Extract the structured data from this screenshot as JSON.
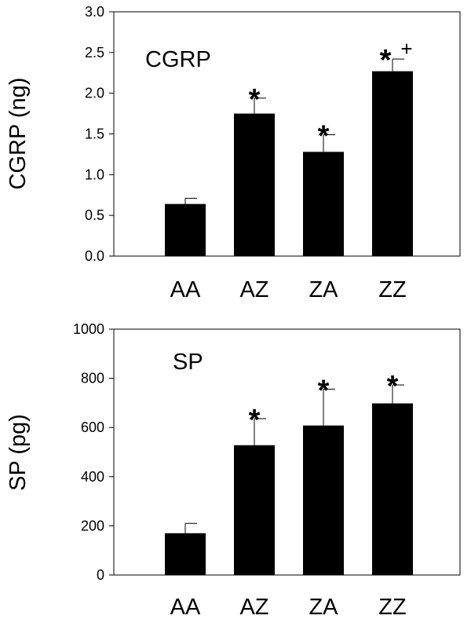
{
  "chart_data": [
    {
      "type": "bar",
      "title": "CGRP",
      "xlabel": "",
      "ylabel": "CGRP (ng)",
      "categories": [
        "AA",
        "AZ",
        "ZA",
        "ZZ"
      ],
      "values": [
        0.64,
        1.75,
        1.28,
        2.27
      ],
      "errors": [
        0.07,
        0.19,
        0.21,
        0.15
      ],
      "annotations": [
        "",
        "*",
        "*",
        "* +"
      ],
      "ylim": [
        0,
        3.0
      ],
      "yticks": [
        0.0,
        0.5,
        1.0,
        1.5,
        2.0,
        2.5,
        3.0
      ],
      "ytick_labels": [
        "0.0",
        "0.5",
        "1.0",
        "1.5",
        "2.0",
        "2.5",
        "3.0"
      ],
      "grid": false,
      "bar_color": "#000000"
    },
    {
      "type": "bar",
      "title": "SP",
      "xlabel": "",
      "ylabel": "SP (pg)",
      "categories": [
        "AA",
        "AZ",
        "ZA",
        "ZZ"
      ],
      "values": [
        170,
        528,
        608,
        698
      ],
      "errors": [
        40,
        108,
        148,
        75
      ],
      "annotations": [
        "",
        "*",
        "*",
        "*"
      ],
      "ylim": [
        0,
        1000
      ],
      "yticks": [
        0,
        200,
        400,
        600,
        800,
        1000
      ],
      "ytick_labels": [
        "0",
        "200",
        "400",
        "600",
        "800",
        "1000"
      ],
      "grid": false,
      "bar_color": "#000000"
    }
  ]
}
